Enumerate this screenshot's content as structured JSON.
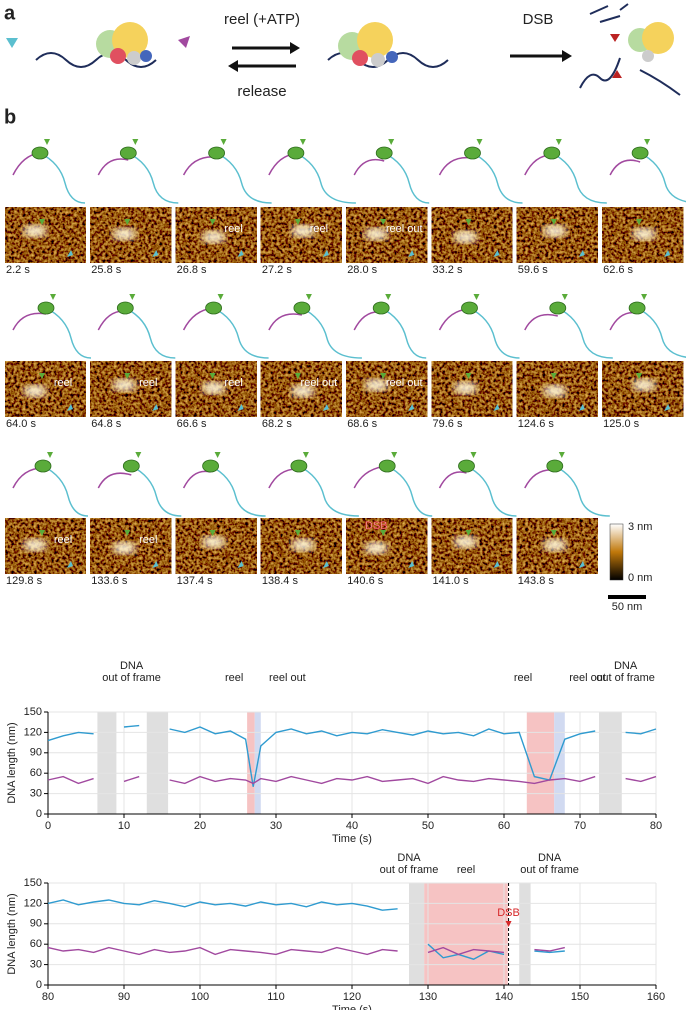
{
  "panel_a": {
    "label": "a",
    "reel": "reel (+ATP)",
    "release": "release",
    "dsb": "DSB"
  },
  "panel_b": {
    "label": "b",
    "frames": [
      {
        "time": "2.2 s"
      },
      {
        "time": "25.8 s"
      },
      {
        "time": "26.8 s",
        "note": "reel"
      },
      {
        "time": "27.2 s",
        "note": "reel"
      },
      {
        "time": "28.0 s",
        "note": "reel out"
      },
      {
        "time": "33.2 s"
      },
      {
        "time": "59.6 s"
      },
      {
        "time": "62.6 s"
      },
      {
        "time": "64.0 s",
        "note": "reel"
      },
      {
        "time": "64.8 s",
        "note": "reel"
      },
      {
        "time": "66.6 s",
        "note": "reel"
      },
      {
        "time": "68.2 s",
        "note": "reel out"
      },
      {
        "time": "68.6 s",
        "note": "reel out"
      },
      {
        "time": "79.6 s"
      },
      {
        "time": "124.6 s"
      },
      {
        "time": "125.0 s"
      },
      {
        "time": "129.8 s",
        "note": "reel"
      },
      {
        "time": "133.6 s",
        "note": "reel"
      },
      {
        "time": "137.4 s"
      },
      {
        "time": "138.4 s"
      },
      {
        "time": "140.6 s",
        "note": "DSB"
      },
      {
        "time": "141.0 s"
      },
      {
        "time": "143.8 s"
      }
    ],
    "colorbar_max": "3 nm",
    "colorbar_min": "0 nm",
    "scale_bar": "50 nm"
  },
  "chart_data": [
    {
      "type": "line",
      "xlabel": "Time (s)",
      "ylabel": "DNA length (nm)",
      "x": [
        0,
        2,
        4,
        6,
        8,
        10,
        12,
        14,
        16,
        18,
        20,
        22,
        24,
        26,
        27,
        28,
        30,
        32,
        34,
        36,
        38,
        40,
        42,
        44,
        46,
        48,
        50,
        52,
        54,
        56,
        58,
        60,
        62,
        64,
        66,
        68,
        70,
        72,
        74,
        76,
        78,
        80
      ],
      "series": [
        {
          "color": "#2f9bd0",
          "values": [
            108,
            115,
            120,
            118,
            null,
            128,
            130,
            null,
            125,
            120,
            128,
            118,
            122,
            110,
            40,
            100,
            120,
            125,
            118,
            122,
            115,
            120,
            118,
            124,
            120,
            116,
            122,
            118,
            120,
            115,
            125,
            118,
            120,
            55,
            50,
            110,
            118,
            122,
            null,
            120,
            118,
            125
          ]
        },
        {
          "color": "#a1499f",
          "values": [
            50,
            55,
            45,
            52,
            null,
            48,
            55,
            null,
            50,
            45,
            55,
            48,
            52,
            50,
            45,
            52,
            48,
            55,
            50,
            45,
            52,
            50,
            55,
            48,
            50,
            52,
            45,
            55,
            50,
            48,
            52,
            50,
            48,
            45,
            50,
            52,
            48,
            55,
            null,
            52,
            48,
            55
          ]
        }
      ],
      "xlim": [
        0,
        80
      ],
      "xticks": [
        0,
        10,
        20,
        30,
        40,
        50,
        60,
        70,
        80
      ],
      "ylim": [
        0,
        150
      ],
      "yticks": [
        0,
        30,
        60,
        90,
        120,
        150
      ],
      "grid": true,
      "regions": [
        {
          "x": [
            6.5,
            9
          ],
          "color": "#d9d9d9"
        },
        {
          "x": [
            13,
            15.8
          ],
          "color": "#d9d9d9"
        },
        {
          "x": [
            26.2,
            27.2
          ],
          "color": "#f4b8b8"
        },
        {
          "x": [
            27.2,
            28
          ],
          "color": "#c9d3ee"
        },
        {
          "x": [
            63,
            66.6
          ],
          "color": "#f4b8b8"
        },
        {
          "x": [
            66.6,
            68
          ],
          "color": "#c9d3ee"
        },
        {
          "x": [
            72.5,
            75.5
          ],
          "color": "#d9d9d9"
        }
      ],
      "annotations": [
        {
          "lines": [
            "DNA",
            "out of frame"
          ],
          "x": 11
        },
        {
          "lines": [
            "reel"
          ],
          "x": 24.5
        },
        {
          "lines": [
            "reel out"
          ],
          "x": 31.5
        },
        {
          "lines": [
            "reel"
          ],
          "x": 62.5
        },
        {
          "lines": [
            "reel out"
          ],
          "x": 71
        },
        {
          "lines": [
            "DNA",
            "out of frame"
          ],
          "x": 76
        }
      ]
    },
    {
      "type": "line",
      "xlabel": "Time (s)",
      "ylabel": "DNA length (nm)",
      "x": [
        80,
        82,
        84,
        86,
        88,
        90,
        92,
        94,
        96,
        98,
        100,
        102,
        104,
        106,
        108,
        110,
        112,
        114,
        116,
        118,
        120,
        122,
        124,
        126,
        128,
        130,
        132,
        134,
        136,
        138,
        140,
        142,
        144,
        146,
        148
      ],
      "series": [
        {
          "color": "#2f9bd0",
          "values": [
            120,
            125,
            118,
            122,
            125,
            120,
            118,
            124,
            120,
            115,
            122,
            118,
            120,
            116,
            122,
            118,
            120,
            115,
            122,
            118,
            120,
            116,
            110,
            112,
            null,
            60,
            40,
            45,
            38,
            50,
            45,
            null,
            50,
            48,
            50
          ]
        },
        {
          "color": "#a1499f",
          "values": [
            55,
            50,
            52,
            48,
            55,
            50,
            45,
            52,
            48,
            50,
            55,
            45,
            52,
            50,
            48,
            45,
            52,
            50,
            48,
            55,
            50,
            45,
            52,
            50,
            null,
            48,
            55,
            45,
            52,
            50,
            48,
            null,
            52,
            50,
            55
          ]
        }
      ],
      "xlim": [
        80,
        160
      ],
      "xticks": [
        80,
        90,
        100,
        110,
        120,
        130,
        140,
        150,
        160
      ],
      "ylim": [
        0,
        150
      ],
      "yticks": [
        0,
        30,
        60,
        90,
        120,
        150
      ],
      "grid": true,
      "regions": [
        {
          "x": [
            127.5,
            129.5
          ],
          "color": "#d9d9d9"
        },
        {
          "x": [
            129.5,
            140.5
          ],
          "color": "#f4b8b8"
        },
        {
          "x": [
            142,
            143.5
          ],
          "color": "#d9d9d9"
        }
      ],
      "annotations": [
        {
          "lines": [
            "DNA",
            "out of frame"
          ],
          "x": 127.5
        },
        {
          "lines": [
            "reel"
          ],
          "x": 135
        },
        {
          "lines": [
            "DNA",
            "out of frame"
          ],
          "x": 146
        }
      ],
      "event": {
        "label": "DSB",
        "x": 140.6,
        "color": "#d62728"
      }
    }
  ]
}
